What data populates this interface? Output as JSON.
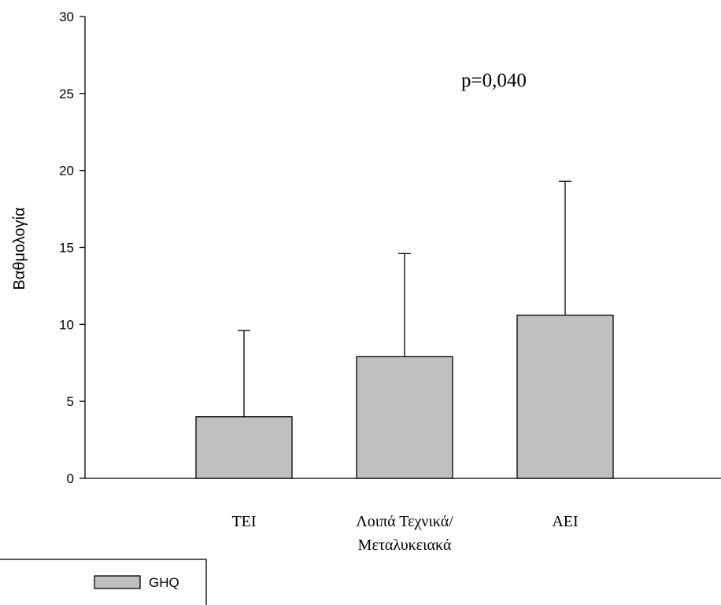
{
  "chart_data": {
    "type": "bar",
    "title": "",
    "xlabel": "",
    "ylabel": "Βαθμολογία",
    "ylim": [
      0,
      30
    ],
    "yticks": [
      0,
      5,
      10,
      15,
      20,
      25,
      30
    ],
    "categories": [
      [
        "TEI"
      ],
      [
        "Λοιπά Τεχνικά/",
        "Μεταλυκειακά"
      ],
      [
        "AEI"
      ]
    ],
    "series": [
      {
        "name": "GHQ",
        "values": [
          4.0,
          7.9,
          10.6
        ],
        "error_upper": [
          9.6,
          14.6,
          19.3
        ]
      }
    ],
    "annotation": "p=0,040",
    "legend_position": "bottom-left",
    "grid": false,
    "colors": {
      "bar_fill": "#c0c0c0",
      "bar_stroke": "#000000",
      "background": "#ffffff"
    }
  }
}
